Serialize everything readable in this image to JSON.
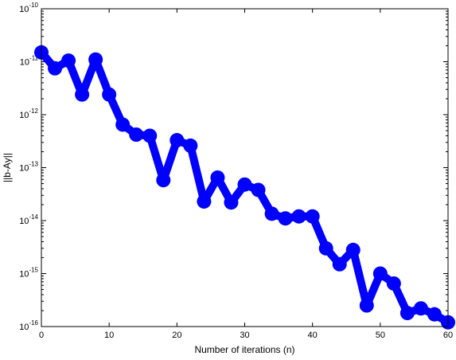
{
  "chart_data": {
    "type": "line",
    "title": "",
    "xlabel": "Number of iterations (n)",
    "ylabel": "||b-Ay||",
    "xlim": [
      0,
      60
    ],
    "ylim": [
      1e-16,
      1e-10
    ],
    "yscale": "log",
    "grid": false,
    "legend": "none",
    "x_ticks": [
      0,
      10,
      20,
      30,
      40,
      50,
      60
    ],
    "x_tick_labels": [
      "0",
      "10",
      "20",
      "30",
      "40",
      "50",
      "60"
    ],
    "y_ticks": [
      1e-16,
      1e-15,
      1e-14,
      1e-13,
      1e-12,
      1e-11,
      1e-10
    ],
    "y_tick_labels": [
      {
        "base": "10",
        "exp": "-16"
      },
      {
        "base": "10",
        "exp": "-15"
      },
      {
        "base": "10",
        "exp": "-14"
      },
      {
        "base": "10",
        "exp": "-13"
      },
      {
        "base": "10",
        "exp": "-12"
      },
      {
        "base": "10",
        "exp": "-11"
      },
      {
        "base": "10",
        "exp": "-10"
      }
    ],
    "series": [
      {
        "color": "#0000ff",
        "marker": "circle",
        "x": [
          0,
          2,
          4,
          6,
          8,
          10,
          12,
          14,
          16,
          18,
          20,
          22,
          24,
          26,
          28,
          30,
          32,
          34,
          36,
          38,
          40,
          42,
          44,
          46,
          48,
          50,
          52,
          54,
          56,
          58,
          60
        ],
        "y": [
          1.5e-11,
          7.5e-12,
          1.05e-11,
          2.4e-12,
          1.1e-11,
          2.4e-12,
          6.5e-13,
          4.2e-13,
          4e-13,
          5.8e-14,
          3.3e-13,
          2.6e-13,
          2.3e-14,
          6.5e-14,
          2.2e-14,
          4.8e-14,
          3.8e-14,
          1.35e-14,
          1.1e-14,
          1.2e-14,
          1.2e-14,
          3e-15,
          1.5e-15,
          2.8e-15,
          2.5e-16,
          1e-15,
          6.5e-16,
          1.8e-16,
          2.2e-16,
          1.7e-16,
          1.2e-16
        ]
      }
    ]
  }
}
